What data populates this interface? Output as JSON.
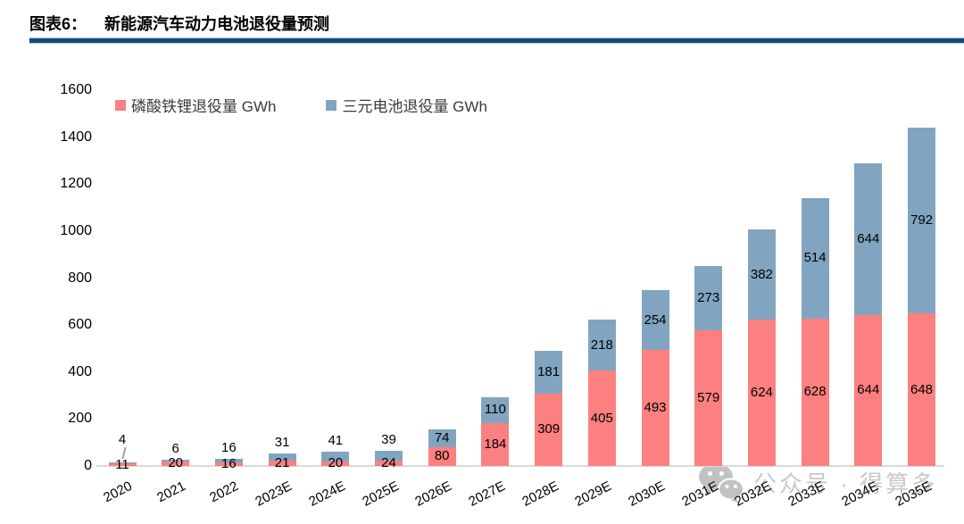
{
  "header": {
    "figure_label": "图表6：",
    "title": "新能源汽车动力电池退役量预测"
  },
  "legend": {
    "items": [
      {
        "label": "磷酸铁锂退役量 GWh",
        "color": "#FC8080"
      },
      {
        "label": "三元电池退役量 GWh",
        "color": "#81A5C0"
      }
    ]
  },
  "watermark": {
    "icon": "wechat-icon",
    "text": "公众号 · 得算多",
    "color": "#bcbcbc"
  },
  "chart_data": {
    "type": "bar",
    "stacked": true,
    "title": "新能源汽车动力电池退役量预测",
    "categories": [
      "2020",
      "2021",
      "2022",
      "2023E",
      "2024E",
      "2025E",
      "2026E",
      "2027E",
      "2028E",
      "2029E",
      "2030E",
      "2031E",
      "2032E",
      "2033E",
      "2034E",
      "2035E"
    ],
    "series": [
      {
        "name": "磷酸铁锂退役量 GWh",
        "color": "#FC8080",
        "values": [
          11,
          20,
          16,
          21,
          20,
          24,
          80,
          184,
          309,
          405,
          493,
          579,
          624,
          628,
          644,
          648
        ]
      },
      {
        "name": "三元电池退役量 GWh",
        "color": "#81A5C0",
        "values": [
          4,
          6,
          16,
          31,
          41,
          39,
          74,
          110,
          181,
          218,
          254,
          273,
          382,
          514,
          644,
          792
        ]
      }
    ],
    "xlabel": "",
    "ylabel": "",
    "ylim": [
      0,
      1600
    ],
    "ytick_step": 200,
    "grid": false,
    "legend_position": "top-left",
    "bar_labels": "inside-segments",
    "axis_line_color": "#D9D9D9"
  }
}
